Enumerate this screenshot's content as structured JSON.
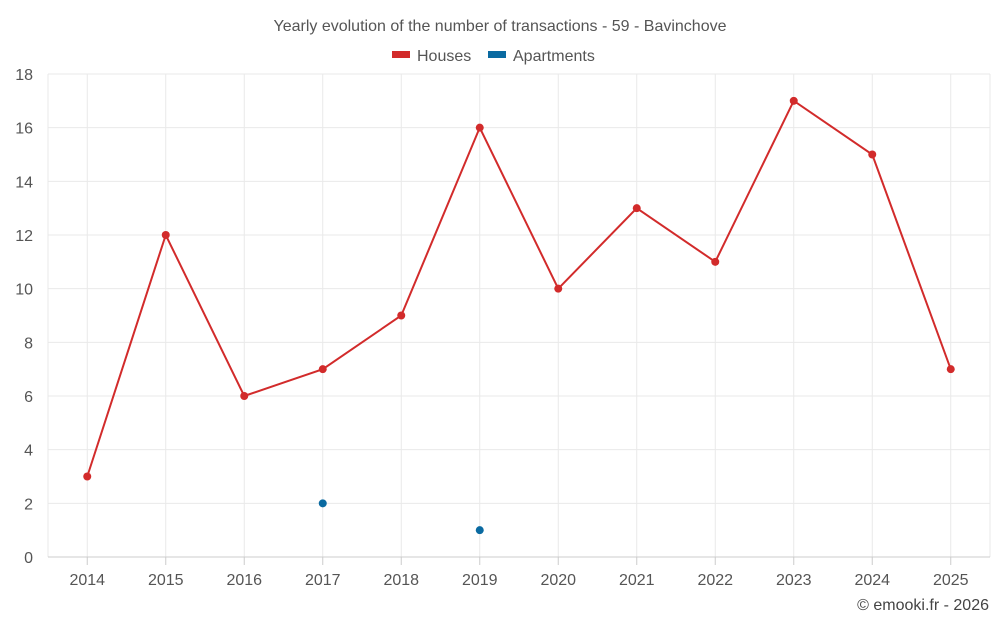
{
  "chart_data": {
    "type": "line",
    "title": "Yearly evolution of the number of transactions - 59 - Bavinchove",
    "xlabel": "",
    "ylabel": "",
    "categories": [
      "2014",
      "2015",
      "2016",
      "2017",
      "2018",
      "2019",
      "2020",
      "2021",
      "2022",
      "2023",
      "2024",
      "2025"
    ],
    "ylim": [
      0,
      18
    ],
    "yticks": [
      "0",
      "2",
      "4",
      "6",
      "8",
      "10",
      "12",
      "14",
      "16",
      "18"
    ],
    "grid": true,
    "legend_position": "top-center",
    "series": [
      {
        "name": "Houses",
        "color": "#d22b2b",
        "values": [
          3,
          12,
          6,
          7,
          9,
          16,
          10,
          13,
          11,
          17,
          15,
          7
        ]
      },
      {
        "name": "Apartments",
        "color": "#0a6aa1",
        "values": [
          null,
          null,
          null,
          2,
          null,
          1,
          null,
          null,
          null,
          null,
          null,
          null
        ]
      }
    ]
  },
  "credit": "© emooki.fr - 2026"
}
